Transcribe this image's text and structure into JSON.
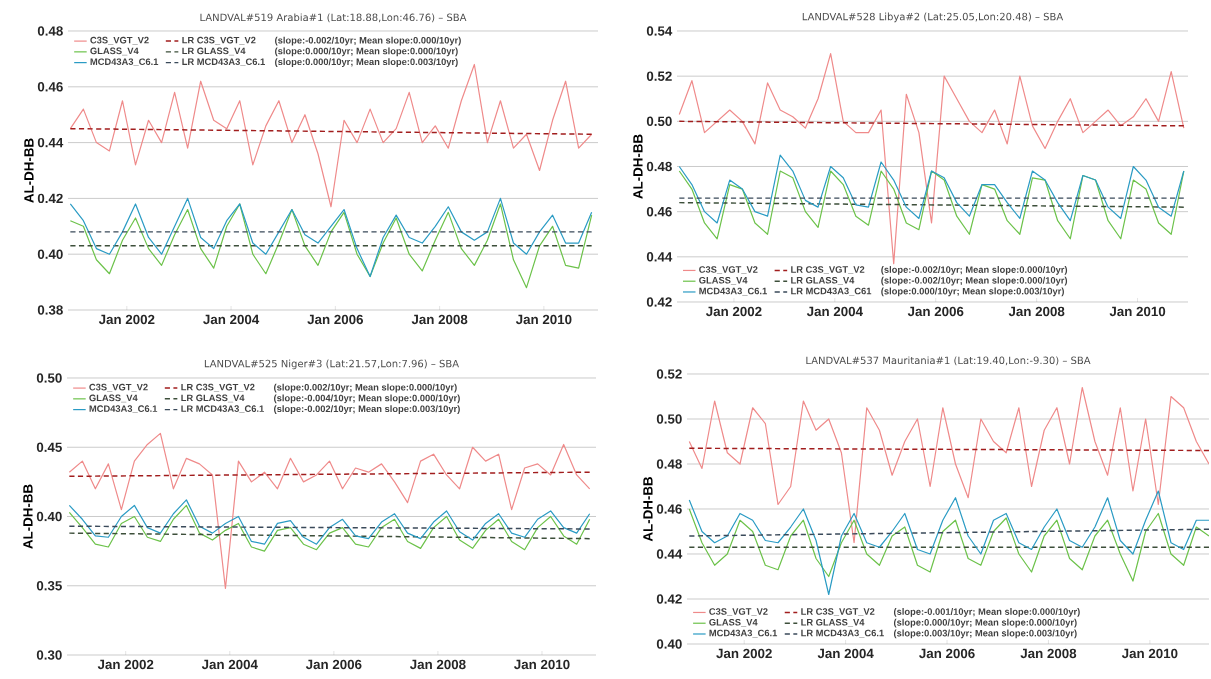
{
  "chart_data": [
    {
      "type": "line",
      "title": "LANDVAL#519 Arabia#1 (Lat:18.88,Lon:46.76) – SBA",
      "ylabel": "AL-DH-BB",
      "grid": "y",
      "legend": "top left",
      "x": [
        "2000-12",
        "2001-03",
        "2001-06",
        "2001-09",
        "2001-12",
        "2002-03",
        "2002-06",
        "2002-09",
        "2002-12",
        "2003-03",
        "2003-06",
        "2003-09",
        "2003-12",
        "2004-03",
        "2004-06",
        "2004-09",
        "2004-12",
        "2005-03",
        "2005-06",
        "2005-09",
        "2005-12",
        "2006-03",
        "2006-06",
        "2006-09",
        "2006-12",
        "2007-03",
        "2007-06",
        "2007-09",
        "2007-12",
        "2008-03",
        "2008-06",
        "2008-09",
        "2008-12",
        "2009-03",
        "2009-06",
        "2009-09",
        "2009-12",
        "2010-03",
        "2010-06",
        "2010-09",
        "2010-12"
      ],
      "xlim": [
        "2000-11-15",
        "2011-01-15"
      ],
      "xticks": [
        {
          "value": "2002-01",
          "label": "Jan 2002"
        },
        {
          "value": "2004-01",
          "label": "Jan 2004"
        },
        {
          "value": "2006-01",
          "label": "Jan 2006"
        },
        {
          "value": "2008-01",
          "label": "Jan 2008"
        },
        {
          "value": "2010-01",
          "label": "Jan 2010"
        }
      ],
      "ylim": [
        0.38,
        0.48
      ],
      "yticks": [
        0.38,
        {
          "value": 0.4,
          "label": "0.40"
        },
        0.42,
        0.44,
        0.46,
        0.48
      ],
      "annotations": [
        "(slope:-0.002/10yr; Mean slope:0.000/10yr)",
        "(slope:0.000/10yr; Mean slope:0.000/10yr)",
        "(slope:0.000/10yr; Mean slope:0.003/10yr)"
      ],
      "series": [
        {
          "name": "C3S_VGT_V2",
          "color": "#ef8a8a",
          "line_style": "solid",
          "values": [
            0.445,
            0.452,
            0.44,
            0.437,
            0.455,
            0.432,
            0.448,
            0.44,
            0.458,
            0.438,
            0.462,
            0.448,
            0.445,
            0.455,
            0.432,
            0.446,
            0.455,
            0.44,
            0.45,
            0.436,
            0.417,
            0.448,
            0.44,
            0.452,
            0.44,
            0.445,
            0.458,
            0.44,
            0.446,
            0.438,
            0.455,
            0.468,
            0.44,
            0.455,
            0.438,
            0.443,
            0.43,
            0.448,
            0.462,
            0.438,
            0.443
          ]
        },
        {
          "name": "LR C3S_VGT_V2",
          "color": "#a11d1d",
          "line_style": "dashed",
          "x": [
            "2000-12",
            "2010-12"
          ],
          "values": [
            0.445,
            0.443
          ]
        },
        {
          "name": "GLASS_V4",
          "color": "#6cc24a",
          "line_style": "solid",
          "values": [
            0.412,
            0.41,
            0.398,
            0.393,
            0.405,
            0.413,
            0.402,
            0.396,
            0.407,
            0.416,
            0.402,
            0.395,
            0.41,
            0.418,
            0.4,
            0.393,
            0.404,
            0.416,
            0.403,
            0.396,
            0.408,
            0.415,
            0.4,
            0.392,
            0.404,
            0.413,
            0.4,
            0.394,
            0.405,
            0.415,
            0.402,
            0.396,
            0.405,
            0.418,
            0.398,
            0.388,
            0.403,
            0.41,
            0.396,
            0.395,
            0.414
          ]
        },
        {
          "name": "LR GLASS_V4",
          "color": "#3d4f3a",
          "line_style": "dashed",
          "x": [
            "2000-12",
            "2010-12"
          ],
          "values": [
            0.403,
            0.403
          ]
        },
        {
          "name": "MCD43A3_C6.1",
          "color": "#2a9bc4",
          "line_style": "solid",
          "values": [
            0.418,
            0.412,
            0.402,
            0.4,
            0.408,
            0.418,
            0.406,
            0.4,
            0.41,
            0.42,
            0.406,
            0.402,
            0.412,
            0.418,
            0.404,
            0.4,
            0.408,
            0.416,
            0.407,
            0.404,
            0.41,
            0.416,
            0.402,
            0.392,
            0.406,
            0.414,
            0.406,
            0.404,
            0.41,
            0.417,
            0.408,
            0.405,
            0.408,
            0.42,
            0.404,
            0.4,
            0.408,
            0.414,
            0.404,
            0.404,
            0.415
          ]
        },
        {
          "name": "LR MCD43A3_C6.1",
          "color": "#3a4a5a",
          "line_style": "dashed",
          "x": [
            "2000-12",
            "2010-12"
          ],
          "values": [
            0.408,
            0.408
          ]
        }
      ]
    },
    {
      "type": "line",
      "title": "LANDVAL#528 Libya#2 (Lat:25.05,Lon:20.48) – SBA",
      "ylabel": "AL-DH-BB",
      "grid": "y",
      "legend": "bottom left",
      "x": [
        "2000-12",
        "2001-03",
        "2001-06",
        "2001-09",
        "2001-12",
        "2002-03",
        "2002-06",
        "2002-09",
        "2002-12",
        "2003-03",
        "2003-06",
        "2003-09",
        "2003-12",
        "2004-03",
        "2004-06",
        "2004-09",
        "2004-12",
        "2005-03",
        "2005-06",
        "2005-09",
        "2005-12",
        "2006-03",
        "2006-06",
        "2006-09",
        "2006-12",
        "2007-03",
        "2007-06",
        "2007-09",
        "2007-12",
        "2008-03",
        "2008-06",
        "2008-09",
        "2008-12",
        "2009-03",
        "2009-06",
        "2009-09",
        "2009-12",
        "2010-03",
        "2010-06",
        "2010-09",
        "2010-12"
      ],
      "xlim": [
        "2000-11-15",
        "2011-01-01"
      ],
      "xticks": [
        {
          "value": "2002-01",
          "label": "Jan 2002"
        },
        {
          "value": "2004-01",
          "label": "Jan 2004"
        },
        {
          "value": "2006-01",
          "label": "Jan 2006"
        },
        {
          "value": "2008-01",
          "label": "Jan 2008"
        },
        {
          "value": "2010-01",
          "label": "Jan 2010"
        }
      ],
      "ylim": [
        0.42,
        0.54
      ],
      "yticks": [
        0.42,
        0.44,
        0.46,
        0.48,
        {
          "value": 0.5,
          "label": "0.50"
        },
        0.52,
        0.54
      ],
      "annotations": [
        "(slope:-0.002/10yr; Mean slope:0.000/10yr)",
        "(slope:-0.002/10yr; Mean slope:0.000/10yr)",
        "(slope:0.000/10yr; Mean slope:0.003/10yr)"
      ],
      "series": [
        {
          "name": "C3S_VGT_V2",
          "color": "#ef8a8a",
          "line_style": "solid",
          "values": [
            0.503,
            0.518,
            0.495,
            0.5,
            0.505,
            0.5,
            0.49,
            0.517,
            0.505,
            0.502,
            0.497,
            0.51,
            0.53,
            0.5,
            0.495,
            0.495,
            0.505,
            0.437,
            0.512,
            0.495,
            0.455,
            0.52,
            0.51,
            0.5,
            0.495,
            0.505,
            0.49,
            0.52,
            0.498,
            0.488,
            0.5,
            0.51,
            0.495,
            0.5,
            0.505,
            0.498,
            0.502,
            0.51,
            0.5,
            0.522,
            0.497
          ]
        },
        {
          "name": "LR C3S_VGT_V2",
          "color": "#a11d1d",
          "line_style": "dashed",
          "x": [
            "2000-12",
            "2010-12"
          ],
          "values": [
            0.5,
            0.498
          ]
        },
        {
          "name": "GLASS_V4",
          "color": "#6cc24a",
          "line_style": "solid",
          "values": [
            0.478,
            0.47,
            0.455,
            0.448,
            0.472,
            0.47,
            0.455,
            0.45,
            0.478,
            0.475,
            0.46,
            0.453,
            0.478,
            0.472,
            0.458,
            0.454,
            0.478,
            0.47,
            0.455,
            0.452,
            0.478,
            0.474,
            0.458,
            0.45,
            0.472,
            0.47,
            0.456,
            0.45,
            0.475,
            0.474,
            0.456,
            0.448,
            0.476,
            0.474,
            0.456,
            0.448,
            0.474,
            0.47,
            0.455,
            0.45,
            0.478
          ]
        },
        {
          "name": "LR GLASS_V4",
          "color": "#3d4f3a",
          "line_style": "dashed",
          "x": [
            "2000-12",
            "2010-12"
          ],
          "values": [
            0.464,
            0.462
          ]
        },
        {
          "name": "MCD43A3_C6.1",
          "color": "#2a9bc4",
          "line_style": "solid",
          "values": [
            0.48,
            0.472,
            0.46,
            0.455,
            0.474,
            0.47,
            0.46,
            0.458,
            0.485,
            0.478,
            0.465,
            0.462,
            0.48,
            0.475,
            0.463,
            0.462,
            0.482,
            0.474,
            0.462,
            0.457,
            0.478,
            0.475,
            0.464,
            0.458,
            0.472,
            0.472,
            0.464,
            0.457,
            0.478,
            0.474,
            0.464,
            0.456,
            0.476,
            0.474,
            0.462,
            0.457,
            0.48,
            0.474,
            0.462,
            0.458,
            0.478
          ]
        },
        {
          "name": "LR MCD43A3_C61",
          "color": "#3a4a5a",
          "line_style": "dashed",
          "x": [
            "2000-12",
            "2010-12"
          ],
          "values": [
            0.466,
            0.466
          ]
        }
      ]
    },
    {
      "type": "line",
      "title": "LANDVAL#525 Niger#3 (Lat:21.57,Lon:7.96) – SBA",
      "ylabel": "AL-DH-BB",
      "grid": "y",
      "legend": "top left",
      "x": [
        "2000-12",
        "2001-03",
        "2001-06",
        "2001-09",
        "2001-12",
        "2002-03",
        "2002-06",
        "2002-09",
        "2002-12",
        "2003-03",
        "2003-06",
        "2003-09",
        "2003-12",
        "2004-03",
        "2004-06",
        "2004-09",
        "2004-12",
        "2005-03",
        "2005-06",
        "2005-09",
        "2005-12",
        "2006-03",
        "2006-06",
        "2006-09",
        "2006-12",
        "2007-03",
        "2007-06",
        "2007-09",
        "2007-12",
        "2008-03",
        "2008-06",
        "2008-09",
        "2008-12",
        "2009-03",
        "2009-06",
        "2009-09",
        "2009-12",
        "2010-03",
        "2010-06",
        "2010-09",
        "2010-12"
      ],
      "xlim": [
        "2000-11-15",
        "2011-01-15"
      ],
      "xticks": [
        {
          "value": "2002-01",
          "label": "Jan 2002"
        },
        {
          "value": "2004-01",
          "label": "Jan 2004"
        },
        {
          "value": "2006-01",
          "label": "Jan 2006"
        },
        {
          "value": "2008-01",
          "label": "Jan 2008"
        },
        {
          "value": "2010-01",
          "label": "Jan 2010"
        }
      ],
      "ylim": [
        0.3,
        0.5
      ],
      "yticks": [
        {
          "value": 0.3,
          "label": "0.30"
        },
        0.35,
        {
          "value": 0.4,
          "label": "0.40"
        },
        0.45,
        {
          "value": 0.5,
          "label": "0.50"
        }
      ],
      "annotations": [
        "(slope:0.002/10yr; Mean slope:0.000/10yr)",
        "(slope:-0.004/10yr; Mean slope:0.000/10yr)",
        "(slope:-0.002/10yr; Mean slope:0.003/10yr)"
      ],
      "series": [
        {
          "name": "C3S_VGT_V2",
          "color": "#ef8a8a",
          "line_style": "solid",
          "values": [
            0.432,
            0.44,
            0.42,
            0.438,
            0.405,
            0.44,
            0.452,
            0.46,
            0.42,
            0.442,
            0.438,
            0.43,
            0.348,
            0.44,
            0.425,
            0.432,
            0.42,
            0.442,
            0.425,
            0.43,
            0.44,
            0.42,
            0.435,
            0.432,
            0.438,
            0.425,
            0.41,
            0.44,
            0.445,
            0.43,
            0.42,
            0.45,
            0.44,
            0.445,
            0.405,
            0.435,
            0.438,
            0.43,
            0.452,
            0.43,
            0.42
          ]
        },
        {
          "name": "LR C3S_VGT_V2",
          "color": "#a11d1d",
          "line_style": "dashed",
          "x": [
            "2000-12",
            "2010-12"
          ],
          "values": [
            0.429,
            0.432
          ]
        },
        {
          "name": "GLASS_V4",
          "color": "#6cc24a",
          "line_style": "solid",
          "values": [
            0.403,
            0.392,
            0.38,
            0.378,
            0.395,
            0.4,
            0.385,
            0.382,
            0.398,
            0.408,
            0.388,
            0.383,
            0.39,
            0.395,
            0.378,
            0.375,
            0.39,
            0.392,
            0.38,
            0.376,
            0.388,
            0.392,
            0.38,
            0.378,
            0.392,
            0.398,
            0.382,
            0.377,
            0.392,
            0.4,
            0.383,
            0.377,
            0.39,
            0.398,
            0.382,
            0.376,
            0.392,
            0.4,
            0.386,
            0.38,
            0.398
          ]
        },
        {
          "name": "LR GLASS_V4",
          "color": "#3d4f3a",
          "line_style": "dashed",
          "x": [
            "2000-12",
            "2010-12"
          ],
          "values": [
            0.388,
            0.384
          ]
        },
        {
          "name": "MCD43A3_C6.1",
          "color": "#2a9bc4",
          "line_style": "solid",
          "values": [
            0.408,
            0.398,
            0.386,
            0.385,
            0.4,
            0.408,
            0.392,
            0.388,
            0.402,
            0.412,
            0.393,
            0.388,
            0.395,
            0.4,
            0.382,
            0.38,
            0.395,
            0.397,
            0.385,
            0.38,
            0.392,
            0.398,
            0.386,
            0.384,
            0.396,
            0.402,
            0.388,
            0.384,
            0.396,
            0.404,
            0.389,
            0.383,
            0.395,
            0.402,
            0.388,
            0.385,
            0.398,
            0.404,
            0.392,
            0.388,
            0.402
          ]
        },
        {
          "name": "LR MCD43A3_C6.1",
          "color": "#3a4a5a",
          "line_style": "dashed",
          "x": [
            "2000-12",
            "2010-12"
          ],
          "values": [
            0.393,
            0.391
          ]
        }
      ]
    },
    {
      "type": "line",
      "title": "LANDVAL#537 Mauritania#1 (Lat:19.40,Lon:-9.30) – SBA",
      "ylabel": "AL-DH-BB",
      "grid": "y",
      "legend": "bottom left",
      "x": [
        "2000-12",
        "2001-03",
        "2001-06",
        "2001-09",
        "2001-12",
        "2002-03",
        "2002-06",
        "2002-09",
        "2002-12",
        "2003-03",
        "2003-06",
        "2003-09",
        "2003-12",
        "2004-03",
        "2004-06",
        "2004-09",
        "2004-12",
        "2005-03",
        "2005-06",
        "2005-09",
        "2005-12",
        "2006-03",
        "2006-06",
        "2006-09",
        "2006-12",
        "2007-03",
        "2007-06",
        "2007-09",
        "2007-12",
        "2008-03",
        "2008-06",
        "2008-09",
        "2008-12",
        "2009-03",
        "2009-06",
        "2009-09",
        "2009-12",
        "2010-03",
        "2010-06",
        "2010-09",
        "2010-12",
        "2011-03"
      ],
      "xlim": [
        "2000-11-15",
        "2011-03-01"
      ],
      "xticks": [
        {
          "value": "2002-01",
          "label": "Jan 2002"
        },
        {
          "value": "2004-01",
          "label": "Jan 2004"
        },
        {
          "value": "2006-01",
          "label": "Jan 2006"
        },
        {
          "value": "2008-01",
          "label": "Jan 2008"
        },
        {
          "value": "2010-01",
          "label": "Jan 2010"
        }
      ],
      "ylim": [
        0.4,
        0.52
      ],
      "yticks": [
        {
          "value": 0.4,
          "label": "0.40"
        },
        0.42,
        0.44,
        0.46,
        0.48,
        {
          "value": 0.5,
          "label": "0.50"
        },
        0.52
      ],
      "annotations": [
        "(slope:-0.001/10yr; Mean slope:0.000/10yr)",
        "(slope:0.000/10yr; Mean slope:0.000/10yr)",
        "(slope:0.003/10yr; Mean slope:0.003/10yr)"
      ],
      "series": [
        {
          "name": "C3S_VGT_V2",
          "color": "#ef8a8a",
          "line_style": "solid",
          "values": [
            0.49,
            0.478,
            0.508,
            0.485,
            0.48,
            0.505,
            0.498,
            0.462,
            0.47,
            0.508,
            0.495,
            0.5,
            0.485,
            0.445,
            0.505,
            0.495,
            0.475,
            0.49,
            0.5,
            0.47,
            0.505,
            0.48,
            0.465,
            0.5,
            0.49,
            0.485,
            0.505,
            0.47,
            0.495,
            0.505,
            0.48,
            0.514,
            0.49,
            0.475,
            0.505,
            0.468,
            0.5,
            0.462,
            0.51,
            0.505,
            0.49,
            0.48
          ]
        },
        {
          "name": "LR C3S_VGT_V2",
          "color": "#a11d1d",
          "line_style": "dashed",
          "x": [
            "2000-12",
            "2011-03"
          ],
          "values": [
            0.487,
            0.486
          ]
        },
        {
          "name": "GLASS_V4",
          "color": "#6cc24a",
          "line_style": "solid",
          "values": [
            0.46,
            0.445,
            0.435,
            0.44,
            0.455,
            0.45,
            0.435,
            0.433,
            0.448,
            0.455,
            0.438,
            0.43,
            0.445,
            0.455,
            0.44,
            0.435,
            0.448,
            0.452,
            0.435,
            0.432,
            0.45,
            0.455,
            0.438,
            0.435,
            0.45,
            0.456,
            0.44,
            0.432,
            0.448,
            0.455,
            0.438,
            0.433,
            0.448,
            0.455,
            0.44,
            0.428,
            0.45,
            0.458,
            0.44,
            0.435,
            0.452,
            0.448
          ]
        },
        {
          "name": "LR GLASS_V4",
          "color": "#3d4f3a",
          "line_style": "dashed",
          "x": [
            "2000-12",
            "2011-03"
          ],
          "values": [
            0.443,
            0.443
          ]
        },
        {
          "name": "MCD43A3_C6.1",
          "color": "#2a9bc4",
          "line_style": "solid",
          "values": [
            0.464,
            0.45,
            0.445,
            0.448,
            0.458,
            0.455,
            0.446,
            0.445,
            0.452,
            0.46,
            0.446,
            0.422,
            0.448,
            0.458,
            0.445,
            0.443,
            0.45,
            0.458,
            0.442,
            0.44,
            0.455,
            0.465,
            0.448,
            0.44,
            0.455,
            0.458,
            0.445,
            0.442,
            0.452,
            0.46,
            0.446,
            0.443,
            0.452,
            0.465,
            0.446,
            0.44,
            0.455,
            0.468,
            0.445,
            0.442,
            0.455,
            0.455
          ]
        },
        {
          "name": "LR MCD43A3_C6.1",
          "color": "#3a4a5a",
          "line_style": "dashed",
          "x": [
            "2000-12",
            "2011-03"
          ],
          "values": [
            0.448,
            0.451
          ]
        }
      ]
    }
  ]
}
